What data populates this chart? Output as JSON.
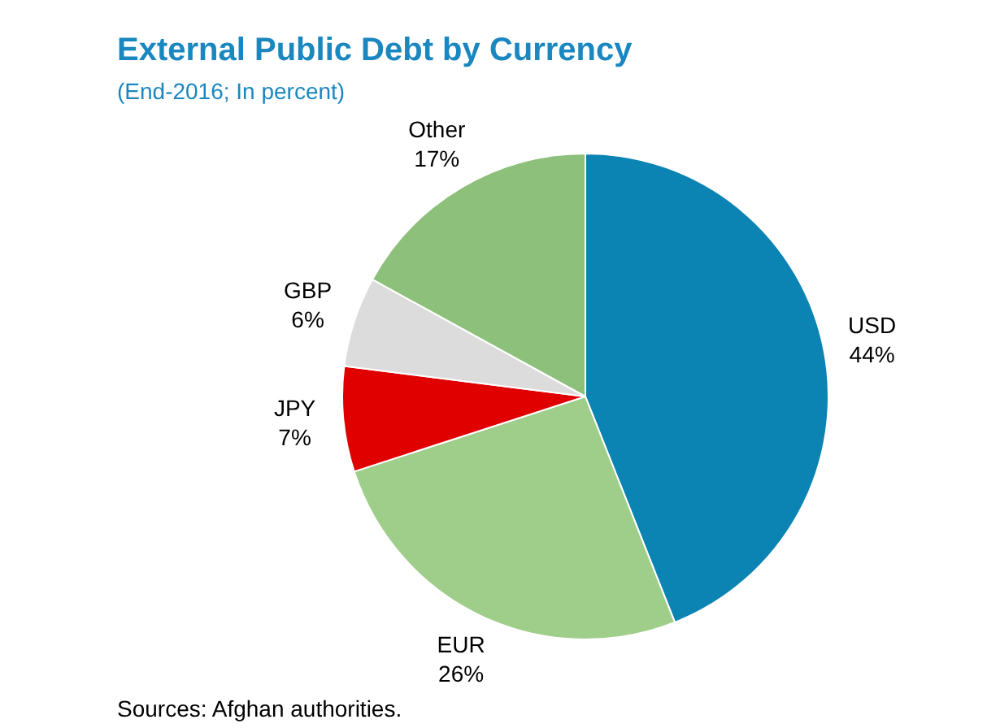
{
  "chart_data": {
    "type": "pie",
    "title": "External Public Debt by Currency",
    "subtitle": "(End-2016; In percent)",
    "categories": [
      "USD",
      "EUR",
      "JPY",
      "GBP",
      "Other"
    ],
    "values": [
      44,
      26,
      7,
      6,
      17
    ],
    "value_labels": [
      "44%",
      "26%",
      "7%",
      "6%",
      "17%"
    ],
    "colors": [
      "#0b83b3",
      "#9fcd8a",
      "#e00000",
      "#dcdcdc",
      "#8dc07a"
    ],
    "legend": false,
    "annotations": [
      "Sources: Afghan authorities."
    ]
  }
}
